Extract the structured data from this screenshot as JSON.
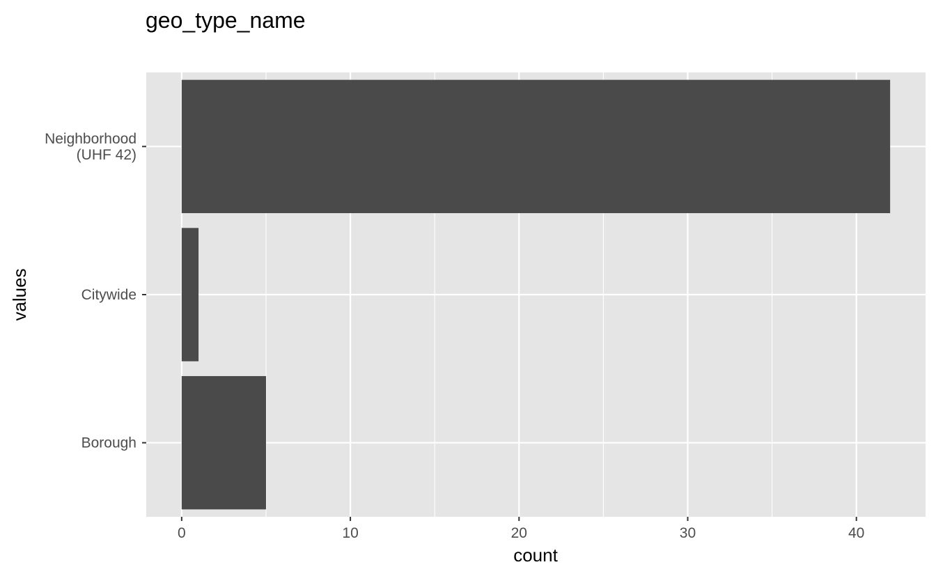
{
  "chart_data": {
    "type": "bar",
    "orientation": "horizontal",
    "title": "geo_type_name",
    "xlabel": "count",
    "ylabel": "values",
    "categories": [
      "Neighborhood (UHF 42)",
      "Citywide",
      "Borough"
    ],
    "category_lines": [
      [
        "Neighborhood",
        "(UHF 42)"
      ],
      [
        "Citywide"
      ],
      [
        "Borough"
      ]
    ],
    "values": [
      42,
      1,
      5
    ],
    "xlim": [
      -2.1,
      44.1
    ],
    "x_ticks": [
      0,
      10,
      20,
      30,
      40
    ],
    "x_minor_ticks": [
      5,
      15,
      25,
      35
    ],
    "grid": true,
    "legend": "none",
    "colors": {
      "bar": "#4a4a4a",
      "panel": "#e5e5e5",
      "grid": "#ffffff",
      "tick_text": "#4d4d4d",
      "tick_mark": "#333333"
    }
  }
}
